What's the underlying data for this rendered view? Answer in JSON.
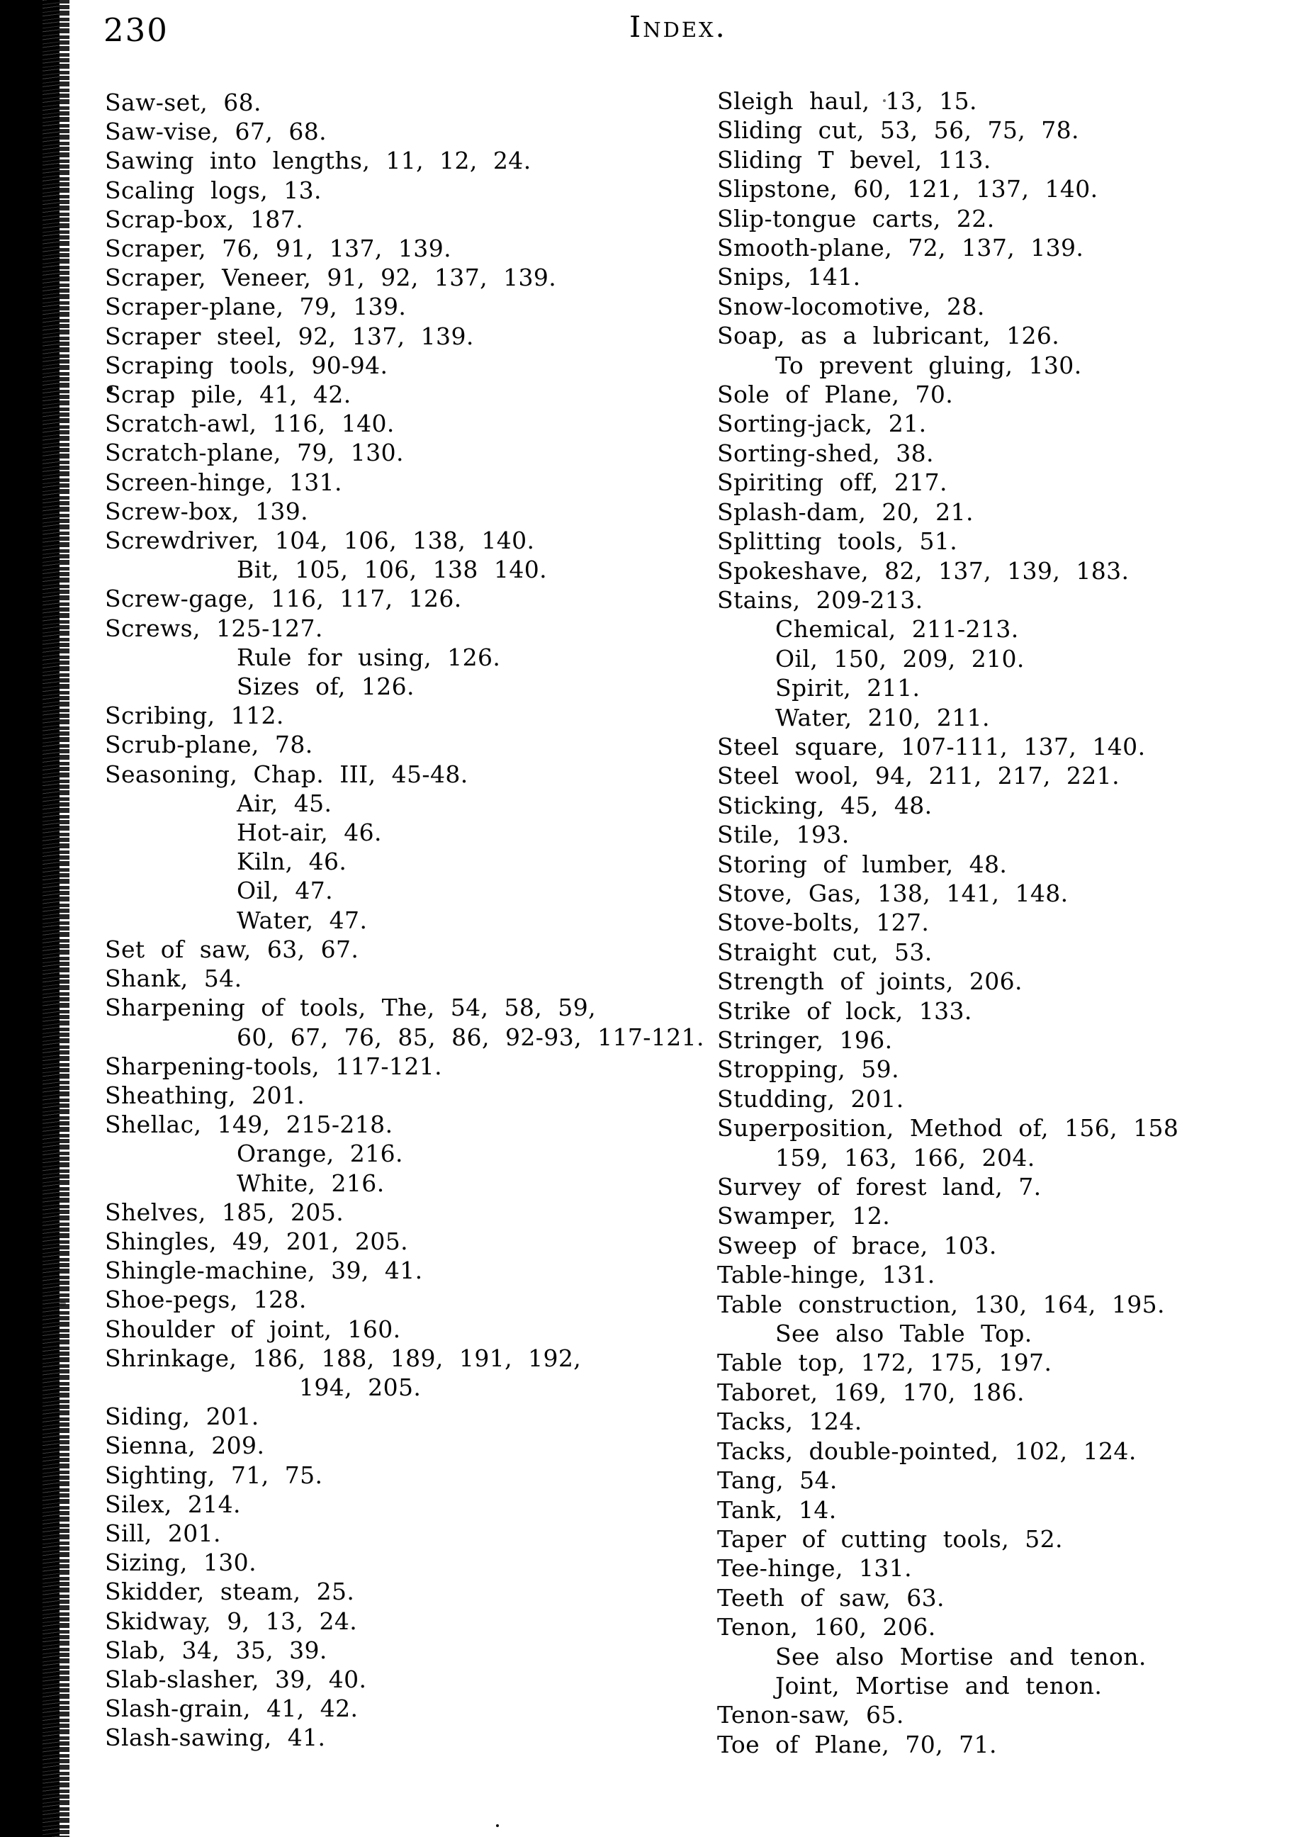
{
  "page": {
    "number": "230",
    "title": "Index."
  },
  "index": {
    "left_column": [
      {
        "text": "Saw-set, 68.",
        "indent": 0
      },
      {
        "text": "Saw-vise, 67, 68.",
        "indent": 0
      },
      {
        "text": "Sawing into lengths, 11, 12, 24.",
        "indent": 0
      },
      {
        "text": "Scaling logs, 13.",
        "indent": 0
      },
      {
        "text": "Scrap-box, 187.",
        "indent": 0
      },
      {
        "text": "Scraper, 76, 91, 137, 139.",
        "indent": 0
      },
      {
        "text": "Scraper, Veneer, 91, 92, 137, 139.",
        "indent": 0
      },
      {
        "text": "Scraper-plane, 79, 139.",
        "indent": 0
      },
      {
        "text": "Scraper steel, 92, 137, 139.",
        "indent": 0
      },
      {
        "text": "Scraping tools, 90-94.",
        "indent": 0
      },
      {
        "text": "Scrap pile, 41, 42.",
        "indent": 0
      },
      {
        "text": "Scratch-awl, 116, 140.",
        "indent": 0
      },
      {
        "text": "Scratch-plane, 79, 130.",
        "indent": 0
      },
      {
        "text": "Screen-hinge, 131.",
        "indent": 0
      },
      {
        "text": "Screw-box, 139.",
        "indent": 0
      },
      {
        "text": "Screwdriver, 104, 106, 138, 140.",
        "indent": 0
      },
      {
        "text": "Bit, 105, 106, 138 140.",
        "indent": 1
      },
      {
        "text": "Screw-gage, 116, 117, 126.",
        "indent": 0
      },
      {
        "text": "Screws, 125-127.",
        "indent": 0
      },
      {
        "text": "Rule for using, 126.",
        "indent": 1
      },
      {
        "text": "Sizes of, 126.",
        "indent": 1
      },
      {
        "text": "Scribing, 112.",
        "indent": 0
      },
      {
        "text": "Scrub-plane, 78.",
        "indent": 0
      },
      {
        "text": "Seasoning, Chap. III, 45-48.",
        "indent": 0
      },
      {
        "text": "Air, 45.",
        "indent": 1
      },
      {
        "text": "Hot-air, 46.",
        "indent": 1
      },
      {
        "text": "Kiln, 46.",
        "indent": 1
      },
      {
        "text": "Oil, 47.",
        "indent": 1
      },
      {
        "text": "Water, 47.",
        "indent": 1
      },
      {
        "text": "Set of saw, 63, 67.",
        "indent": 0
      },
      {
        "text": "Shank, 54.",
        "indent": 0
      },
      {
        "text": "Sharpening of tools, The, 54, 58, 59,",
        "indent": 0
      },
      {
        "text": "60, 67, 76, 85, 86, 92-93, 117-121.",
        "indent": 1
      },
      {
        "text": "Sharpening-tools, 117-121.",
        "indent": 0
      },
      {
        "text": "Sheathing, 201.",
        "indent": 0
      },
      {
        "text": "Shellac, 149, 215-218.",
        "indent": 0
      },
      {
        "text": "Orange, 216.",
        "indent": 1
      },
      {
        "text": "White, 216.",
        "indent": 1
      },
      {
        "text": "Shelves, 185, 205.",
        "indent": 0
      },
      {
        "text": "Shingles, 49, 201, 205.",
        "indent": 0
      },
      {
        "text": "Shingle-machine, 39, 41.",
        "indent": 0
      },
      {
        "text": "Shoe-pegs, 128.",
        "indent": 0
      },
      {
        "text": "Shoulder of joint, 160.",
        "indent": 0
      },
      {
        "text": "Shrinkage, 186, 188, 189, 191, 192,",
        "indent": 0
      },
      {
        "text": "194, 205.",
        "indent": 2
      },
      {
        "text": "Siding, 201.",
        "indent": 0
      },
      {
        "text": "Sienna, 209.",
        "indent": 0
      },
      {
        "text": "Sighting, 71, 75.",
        "indent": 0
      },
      {
        "text": "Silex, 214.",
        "indent": 0
      },
      {
        "text": "Sill, 201.",
        "indent": 0
      },
      {
        "text": "Sizing, 130.",
        "indent": 0
      },
      {
        "text": "Skidder, steam, 25.",
        "indent": 0
      },
      {
        "text": "Skidway, 9, 13, 24.",
        "indent": 0
      },
      {
        "text": "Slab, 34, 35, 39.",
        "indent": 0
      },
      {
        "text": "Slab-slasher, 39, 40.",
        "indent": 0
      },
      {
        "text": "Slash-grain, 41, 42.",
        "indent": 0
      },
      {
        "text": "Slash-sawing, 41.",
        "indent": 0
      }
    ],
    "right_column": [
      {
        "text": "Sleigh haul, 13, 15.",
        "indent": 0
      },
      {
        "text": "Sliding cut, 53, 56, 75, 78.",
        "indent": 0
      },
      {
        "text": "Sliding T bevel, 113.",
        "indent": 0
      },
      {
        "text": "Slipstone, 60, 121, 137, 140.",
        "indent": 0
      },
      {
        "text": "Slip-tongue carts, 22.",
        "indent": 0
      },
      {
        "text": "Smooth-plane, 72, 137, 139.",
        "indent": 0
      },
      {
        "text": "Snips, 141.",
        "indent": 0
      },
      {
        "text": "Snow-locomotive, 28.",
        "indent": 0
      },
      {
        "text": "Soap, as a lubricant, 126.",
        "indent": 0
      },
      {
        "text": "To prevent gluing, 130.",
        "indent": 1
      },
      {
        "text": "Sole of Plane, 70.",
        "indent": 0
      },
      {
        "text": "Sorting-jack, 21.",
        "indent": 0
      },
      {
        "text": "Sorting-shed, 38.",
        "indent": 0
      },
      {
        "text": "Spiriting off, 217.",
        "indent": 0
      },
      {
        "text": "Splash-dam, 20, 21.",
        "indent": 0
      },
      {
        "text": "Splitting tools, 51.",
        "indent": 0
      },
      {
        "text": "Spokeshave, 82, 137, 139, 183.",
        "indent": 0
      },
      {
        "text": "Stains, 209-213.",
        "indent": 0
      },
      {
        "text": "Chemical, 211-213.",
        "indent": 1
      },
      {
        "text": "Oil, 150, 209, 210.",
        "indent": 1
      },
      {
        "text": "Spirit, 211.",
        "indent": 1
      },
      {
        "text": "Water, 210, 211.",
        "indent": 1
      },
      {
        "text": "Steel square, 107-111, 137, 140.",
        "indent": 0
      },
      {
        "text": "Steel wool, 94, 211, 217, 221.",
        "indent": 0
      },
      {
        "text": "Sticking, 45, 48.",
        "indent": 0
      },
      {
        "text": "Stile, 193.",
        "indent": 0
      },
      {
        "text": "Storing of lumber, 48.",
        "indent": 0
      },
      {
        "text": "Stove, Gas, 138, 141, 148.",
        "indent": 0
      },
      {
        "text": "Stove-bolts, 127.",
        "indent": 0
      },
      {
        "text": "Straight cut, 53.",
        "indent": 0
      },
      {
        "text": "Strength of joints, 206.",
        "indent": 0
      },
      {
        "text": "Strike of lock, 133.",
        "indent": 0
      },
      {
        "text": "Stringer, 196.",
        "indent": 0
      },
      {
        "text": "Stropping, 59.",
        "indent": 0
      },
      {
        "text": "Studding, 201.",
        "indent": 0
      },
      {
        "text": "Superposition, Method of, 156, 158",
        "indent": 0
      },
      {
        "text": "159, 163, 166, 204.",
        "indent": 1
      },
      {
        "text": "Survey of forest land, 7.",
        "indent": 0
      },
      {
        "text": "Swamper, 12.",
        "indent": 0
      },
      {
        "text": "Sweep of brace, 103.",
        "indent": 0
      },
      {
        "text": "Table-hinge, 131.",
        "indent": 0
      },
      {
        "text": "Table construction, 130, 164, 195.",
        "indent": 0
      },
      {
        "text": "See also Table Top.",
        "indent": 1
      },
      {
        "text": "Table top, 172, 175, 197.",
        "indent": 0
      },
      {
        "text": "Taboret, 169, 170, 186.",
        "indent": 0
      },
      {
        "text": "Tacks, 124.",
        "indent": 0
      },
      {
        "text": "Tacks, double-pointed, 102, 124.",
        "indent": 0
      },
      {
        "text": "Tang, 54.",
        "indent": 0
      },
      {
        "text": "Tank, 14.",
        "indent": 0
      },
      {
        "text": "Taper of cutting tools, 52.",
        "indent": 0
      },
      {
        "text": "Tee-hinge, 131.",
        "indent": 0
      },
      {
        "text": "Teeth of saw, 63.",
        "indent": 0
      },
      {
        "text": "Tenon, 160, 206.",
        "indent": 0
      },
      {
        "text": "See also Mortise and tenon.",
        "indent": 1
      },
      {
        "text": "Joint, Mortise and tenon.",
        "indent": 1
      },
      {
        "text": "Tenon-saw, 65.",
        "indent": 0
      },
      {
        "text": "Toe of Plane, 70, 71.",
        "indent": 0
      }
    ]
  }
}
